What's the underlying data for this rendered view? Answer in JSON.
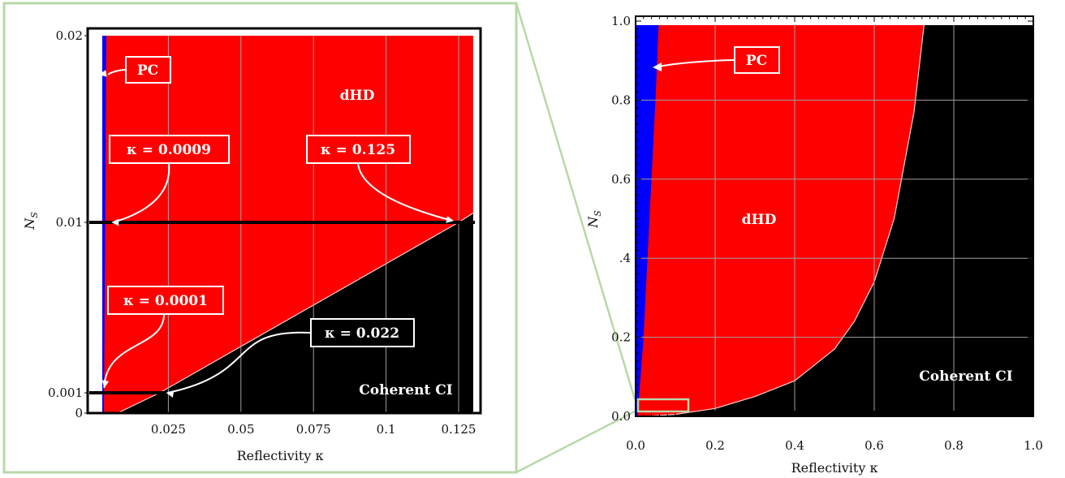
{
  "chart_data": [
    {
      "type": "area",
      "panel": "left",
      "xlabel": "Reflectivity κ",
      "ylabel": "N_S",
      "xlim": [
        0,
        0.13
      ],
      "ylim": [
        0,
        0.02
      ],
      "y_ticks": [
        {
          "value": 0,
          "label": "0"
        },
        {
          "value": 0.001,
          "label": "0.001"
        },
        {
          "value": 0.01,
          "label": "0.01"
        },
        {
          "value": 0.02,
          "label": "0.02"
        }
      ],
      "x_ticks": [
        {
          "value": 0.025,
          "label": "0.025"
        },
        {
          "value": 0.05,
          "label": "0.05"
        },
        {
          "value": 0.075,
          "label": "0.075"
        },
        {
          "value": 0.1,
          "label": "0.1"
        },
        {
          "value": 0.125,
          "label": "0.125"
        }
      ],
      "grid": true,
      "regions": [
        {
          "name": "PC",
          "color": "#0000ff"
        },
        {
          "name": "dHD",
          "color": "#ff0000"
        },
        {
          "name": "Coherent CI",
          "color": "#000000"
        }
      ],
      "boundaries": {
        "pc_dhd": [
          [
            0.0009,
            0.01
          ],
          [
            0.0001,
            0.001
          ],
          [
            0.002,
            0.02
          ]
        ],
        "dhd_ci": [
          [
            0.0075,
            0.0
          ],
          [
            0.022,
            0.001
          ],
          [
            0.125,
            0.01
          ],
          [
            0.13,
            0.0105
          ]
        ]
      },
      "lines": [
        {
          "y": 0.01,
          "x_from": 0,
          "x_to": 0.13
        },
        {
          "y": 0.001,
          "x_from": 0,
          "x_to": 0.022
        }
      ],
      "annotations": [
        {
          "text": "PC",
          "points_to": [
            0.0005,
            0.0175
          ]
        },
        {
          "text": "dHD"
        },
        {
          "text": "κ = 0.0009",
          "points_to": [
            0.0009,
            0.01
          ]
        },
        {
          "text": "κ = 0.125",
          "points_to": [
            0.125,
            0.01
          ]
        },
        {
          "text": "κ = 0.0001",
          "points_to": [
            0.0001,
            0.001
          ]
        },
        {
          "text": "κ = 0.022",
          "points_to": [
            0.022,
            0.001
          ]
        },
        {
          "text": "Coherent CI"
        }
      ]
    },
    {
      "type": "area",
      "panel": "right",
      "xlabel": "Reflectivity κ",
      "ylabel": "N_S",
      "xlim": [
        0,
        1
      ],
      "ylim": [
        0,
        1
      ],
      "x_ticks": [
        {
          "value": 0,
          "label": "0.0"
        },
        {
          "value": 0.2,
          "label": "0.2"
        },
        {
          "value": 0.4,
          "label": "0.4"
        },
        {
          "value": 0.6,
          "label": "0.6"
        },
        {
          "value": 0.8,
          "label": "0.8"
        },
        {
          "value": 1,
          "label": "1.0"
        }
      ],
      "y_ticks": [
        {
          "value": 0,
          "label": "0.0"
        },
        {
          "value": 0.2,
          "label": "0.2"
        },
        {
          "value": 0.4,
          "label": ".4"
        },
        {
          "value": 0.6,
          "label": "0.6"
        },
        {
          "value": 0.8,
          "label": "0.8"
        },
        {
          "value": 1,
          "label": "1.0"
        }
      ],
      "grid": true,
      "regions": [
        {
          "name": "PC",
          "color": "#0000ff"
        },
        {
          "name": "dHD",
          "color": "#ff0000"
        },
        {
          "name": "Coherent CI",
          "color": "#000000"
        }
      ],
      "boundaries": {
        "pc_dhd": [
          [
            0.005,
            0.0
          ],
          [
            0.02,
            0.2
          ],
          [
            0.035,
            0.5
          ],
          [
            0.05,
            0.8
          ],
          [
            0.058,
            0.99
          ]
        ],
        "dhd_ci": [
          [
            0.02,
            0.0
          ],
          [
            0.1,
            0.005
          ],
          [
            0.2,
            0.02
          ],
          [
            0.3,
            0.05
          ],
          [
            0.4,
            0.09
          ],
          [
            0.5,
            0.17
          ],
          [
            0.55,
            0.24
          ],
          [
            0.6,
            0.34
          ],
          [
            0.65,
            0.5
          ],
          [
            0.7,
            0.77
          ],
          [
            0.725,
            0.99
          ]
        ]
      },
      "inset_box": {
        "x": [
          0,
          0.13
        ],
        "y": [
          0,
          0.02
        ]
      },
      "annotations": [
        {
          "text": "PC",
          "points_to": [
            0.045,
            0.88
          ]
        },
        {
          "text": "dHD"
        },
        {
          "text": "Coherent CI"
        }
      ]
    }
  ]
}
